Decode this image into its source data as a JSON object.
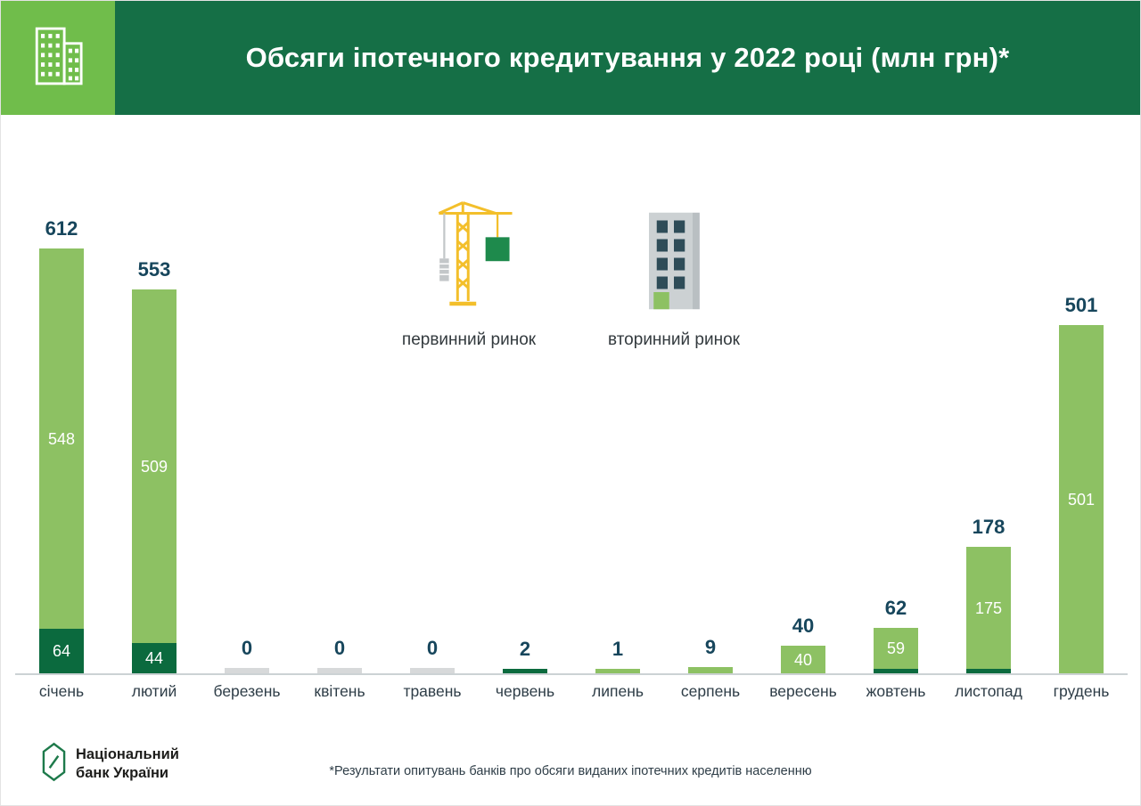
{
  "header": {
    "title": "Обсяги іпотечного кредитування у 2022 році (млн грн)*",
    "icon": "buildings-icon"
  },
  "legend": {
    "primary_label": "первинний ринок",
    "primary_icon": "construction-crane-icon",
    "secondary_label": "вторинний ринок",
    "secondary_icon": "apartment-building-icon"
  },
  "chart_data": {
    "type": "bar",
    "stacked": true,
    "title": "Обсяги іпотечного кредитування у 2022 році (млн грн)*",
    "unit": "млн грн",
    "categories": [
      "січень",
      "лютий",
      "березень",
      "квітень",
      "травень",
      "червень",
      "липень",
      "серпень",
      "вересень",
      "жовтень",
      "листопад",
      "грудень"
    ],
    "totals": [
      612,
      553,
      0,
      0,
      0,
      2,
      1,
      9,
      40,
      62,
      178,
      501
    ],
    "series": [
      {
        "name": "первинний ринок",
        "color": "#0b6a3e",
        "values": [
          64,
          44,
          0,
          0,
          0,
          2,
          0,
          0,
          0,
          3,
          3,
          0
        ]
      },
      {
        "name": "вторинний ринок",
        "color": "#8dc163",
        "values": [
          548,
          509,
          0,
          0,
          0,
          0,
          1,
          9,
          40,
          59,
          175,
          501
        ]
      }
    ],
    "inside_labels": {
      "secondary": [
        "548",
        "509",
        "",
        "",
        "",
        "",
        "",
        "",
        "40",
        "59",
        "175",
        "501"
      ],
      "primary": [
        "64",
        "44",
        "",
        "",
        "",
        "",
        "",
        "",
        "",
        "",
        "",
        ""
      ]
    },
    "zero_bar_color": "#d7d9da",
    "ylim": [
      0,
      650
    ],
    "legend_position": "top-center",
    "grid": false
  },
  "footer": {
    "logo_icon": "nbu-emblem-icon",
    "logo_line1": "Національний",
    "logo_line2": "банк України",
    "footnote": "*Результати опитувань банків про обсяги виданих іпотечних кредитів населенню"
  },
  "colors": {
    "header_green": "#156f46",
    "icon_box_green": "#70bd4b",
    "bar_light_green": "#8dc163",
    "bar_dark_green": "#0b6a3e",
    "zero_bar_gray": "#d7d9da",
    "total_label": "#17465c",
    "month_label": "#2e3d47"
  }
}
